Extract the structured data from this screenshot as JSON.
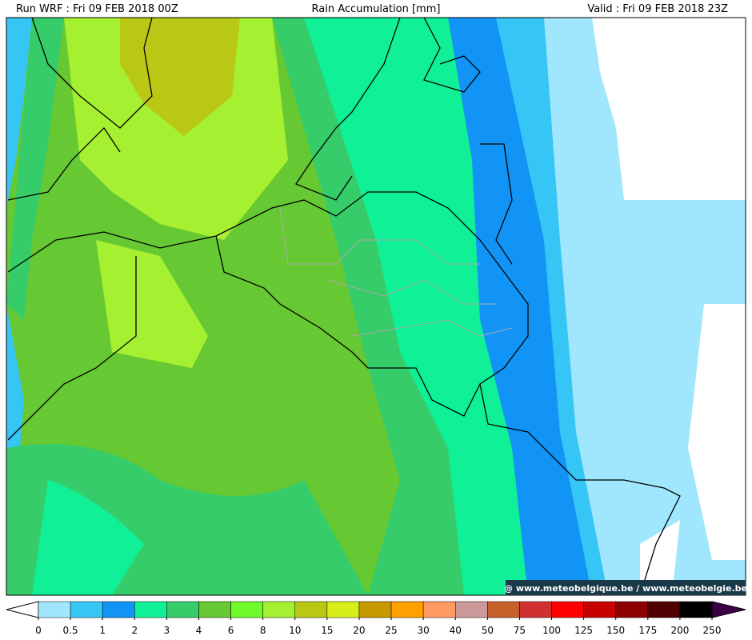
{
  "header": {
    "run": "Run WRF : Fri 09 FEB 2018 00Z",
    "title": "Rain Accumulation [mm]",
    "valid": "Valid : Fri 09 FEB 2018 23Z"
  },
  "watermark": "@ www.meteobelgique.be / www.meteobelgie.be",
  "colorbar": {
    "ticks": [
      0,
      0.5,
      1,
      2,
      3,
      4,
      6,
      8,
      10,
      15,
      20,
      25,
      30,
      40,
      50,
      75,
      100,
      125,
      150,
      175,
      200,
      250
    ],
    "colors": [
      "#a0e6fc",
      "#36c6f6",
      "#1194f6",
      "#10f096",
      "#36cc6a",
      "#66c832",
      "#70fa2c",
      "#a6f032",
      "#b8c814",
      "#d8ee18",
      "#c89800",
      "#ffa000",
      "#ff9a62",
      "#cc9a9a",
      "#c8602c",
      "#d03030",
      "#ff0000",
      "#c80000",
      "#8c0000",
      "#500000",
      "#000000"
    ],
    "under_color": "#ffffff",
    "over_color": "#3c0046"
  }
}
